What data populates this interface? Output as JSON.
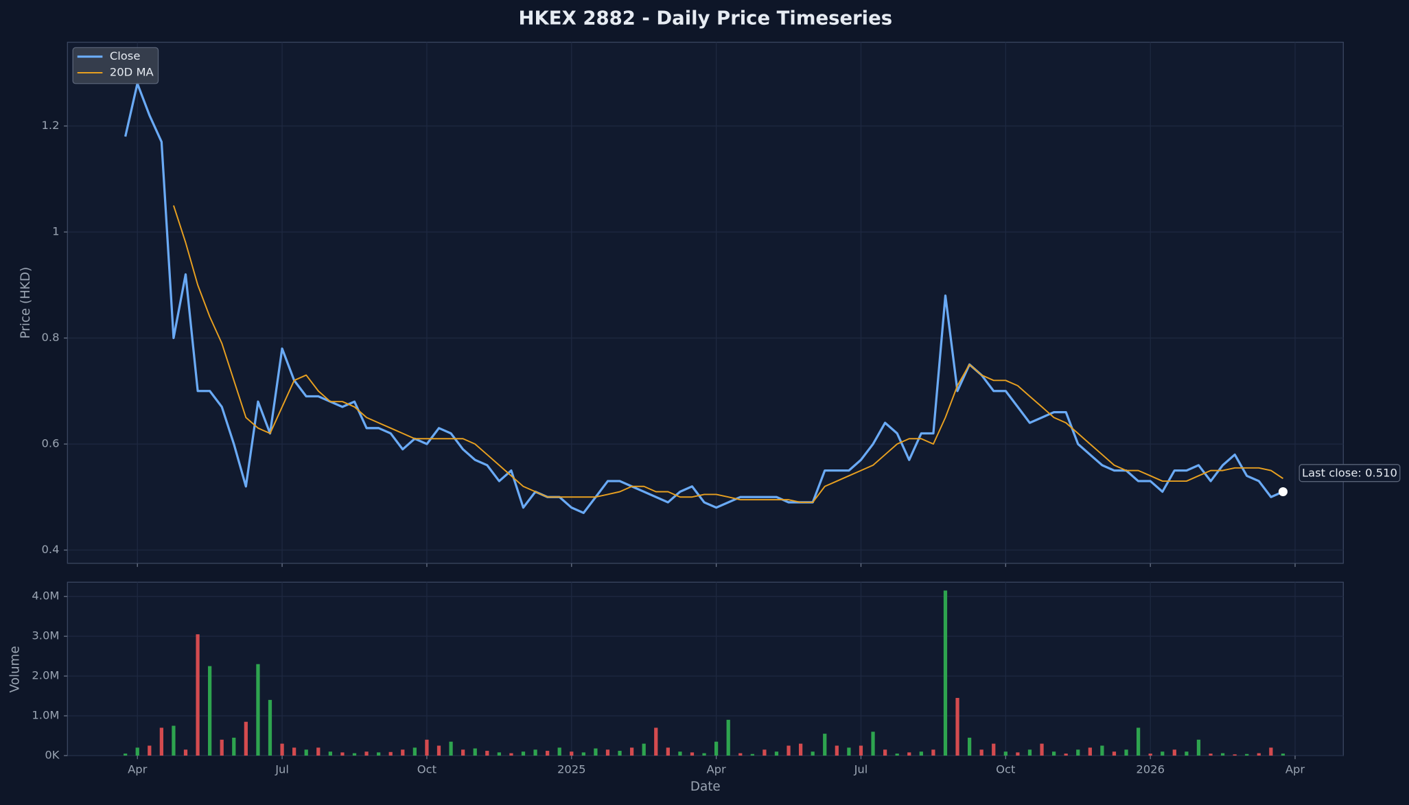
{
  "chart_data": [
    {
      "type": "line",
      "title": "HKEX 2882 - Daily Price Timeseries",
      "ylabel": "Price (HKD)",
      "x": [
        2.75,
        3,
        3.25,
        3.5,
        3.75,
        4,
        4.25,
        4.5,
        4.75,
        5,
        5.25,
        5.5,
        5.75,
        6,
        6.25,
        6.5,
        6.75,
        7,
        7.25,
        7.5,
        7.75,
        8,
        8.25,
        8.5,
        8.75,
        9,
        9.25,
        9.5,
        9.75,
        10,
        10.25,
        10.5,
        10.75,
        11,
        11.25,
        11.5,
        11.75,
        12,
        12.25,
        12.5,
        12.75,
        13,
        13.25,
        13.5,
        13.75,
        14,
        14.25,
        14.5,
        14.75,
        15,
        15.25,
        15.5,
        15.75,
        16,
        16.25,
        16.5,
        16.75,
        17,
        17.25,
        17.5,
        17.75,
        18,
        18.25,
        18.5,
        18.75,
        19,
        19.25,
        19.5,
        19.75,
        20,
        20.25,
        20.5,
        20.75,
        21,
        21.25,
        21.5,
        21.75,
        22,
        22.25,
        22.5,
        22.75,
        23,
        23.25,
        23.5,
        23.75,
        24,
        24.25,
        24.5,
        24.75,
        25,
        25.25,
        25.5,
        25.75,
        26,
        26.25,
        26.5,
        26.75
      ],
      "series": [
        {
          "name": "Close",
          "color": "#6aaaf5",
          "width": 2.5,
          "values": [
            1.18,
            1.28,
            1.22,
            1.17,
            0.8,
            0.92,
            0.7,
            0.7,
            0.67,
            0.6,
            0.52,
            0.68,
            0.62,
            0.78,
            0.72,
            0.69,
            0.69,
            0.68,
            0.67,
            0.68,
            0.63,
            0.63,
            0.62,
            0.59,
            0.61,
            0.6,
            0.63,
            0.62,
            0.59,
            0.57,
            0.56,
            0.53,
            0.55,
            0.48,
            0.51,
            0.5,
            0.5,
            0.48,
            0.47,
            0.5,
            0.53,
            0.53,
            0.52,
            0.51,
            0.5,
            0.49,
            0.51,
            0.52,
            0.49,
            0.48,
            0.49,
            0.5,
            0.5,
            0.5,
            0.5,
            0.49,
            0.49,
            0.49,
            0.55,
            0.55,
            0.55,
            0.57,
            0.6,
            0.64,
            0.62,
            0.57,
            0.62,
            0.62,
            0.88,
            0.7,
            0.75,
            0.73,
            0.7,
            0.7,
            0.67,
            0.64,
            0.65,
            0.66,
            0.66,
            0.6,
            0.58,
            0.56,
            0.55,
            0.55,
            0.53,
            0.53,
            0.51,
            0.55,
            0.55,
            0.56,
            0.53,
            0.56,
            0.58,
            0.54,
            0.53,
            0.5,
            0.51
          ]
        },
        {
          "name": "20D MA",
          "color": "#e8a020",
          "width": 1.5,
          "values": [
            null,
            null,
            null,
            null,
            1.05,
            0.98,
            0.9,
            0.84,
            0.79,
            0.72,
            0.65,
            0.63,
            0.62,
            0.67,
            0.72,
            0.73,
            0.7,
            0.68,
            0.68,
            0.67,
            0.65,
            0.64,
            0.63,
            0.62,
            0.61,
            0.61,
            0.61,
            0.61,
            0.61,
            0.6,
            0.58,
            0.56,
            0.54,
            0.52,
            0.51,
            0.5,
            0.5,
            0.5,
            0.5,
            0.5,
            0.505,
            0.51,
            0.52,
            0.52,
            0.51,
            0.51,
            0.5,
            0.5,
            0.505,
            0.505,
            0.5,
            0.495,
            0.495,
            0.495,
            0.495,
            0.495,
            0.49,
            0.49,
            0.52,
            0.53,
            0.54,
            0.55,
            0.56,
            0.58,
            0.6,
            0.61,
            0.61,
            0.6,
            0.65,
            0.71,
            0.75,
            0.73,
            0.72,
            0.72,
            0.71,
            0.69,
            0.67,
            0.65,
            0.64,
            0.62,
            0.6,
            0.58,
            0.56,
            0.55,
            0.55,
            0.54,
            0.53,
            0.53,
            0.53,
            0.54,
            0.55,
            0.55,
            0.555,
            0.555,
            0.555,
            0.55,
            0.535
          ]
        }
      ],
      "annotation": "Last close: 0.510",
      "xlim": [
        1.55,
        28.0
      ],
      "xticks": [
        3,
        6,
        9,
        12,
        15,
        18,
        21,
        24,
        27
      ],
      "ylim": [
        0.375,
        1.358
      ],
      "yticks": [
        0.4,
        0.6,
        0.8,
        1.0,
        1.2
      ],
      "grid": true,
      "legend": "upper left"
    },
    {
      "type": "bar",
      "ylabel": "Volume",
      "xlabel": "Date",
      "x": [
        2.75,
        3,
        3.25,
        3.5,
        3.75,
        4,
        4.25,
        4.5,
        4.75,
        5,
        5.25,
        5.5,
        5.75,
        6,
        6.25,
        6.5,
        6.75,
        7,
        7.25,
        7.5,
        7.75,
        8,
        8.25,
        8.5,
        8.75,
        9,
        9.25,
        9.5,
        9.75,
        10,
        10.25,
        10.5,
        10.75,
        11,
        11.25,
        11.5,
        11.75,
        12,
        12.25,
        12.5,
        12.75,
        13,
        13.25,
        13.5,
        13.75,
        14,
        14.25,
        14.5,
        14.75,
        15,
        15.25,
        15.5,
        15.75,
        16,
        16.25,
        16.5,
        16.75,
        17,
        17.25,
        17.5,
        17.75,
        18,
        18.25,
        18.5,
        18.75,
        19,
        19.25,
        19.5,
        19.75,
        20,
        20.25,
        20.5,
        20.75,
        21,
        21.25,
        21.5,
        21.75,
        22,
        22.25,
        22.5,
        22.75,
        23,
        23.25,
        23.5,
        23.75,
        24,
        24.25,
        24.5,
        24.75,
        25,
        25.25,
        25.5,
        25.75,
        26,
        26.25,
        26.5,
        26.75
      ],
      "values": [
        50000,
        200000,
        250000,
        700000,
        750000,
        150000,
        3050000,
        2250000,
        400000,
        450000,
        850000,
        2300000,
        1400000,
        300000,
        200000,
        150000,
        200000,
        100000,
        80000,
        60000,
        100000,
        80000,
        90000,
        150000,
        200000,
        400000,
        250000,
        350000,
        150000,
        180000,
        120000,
        80000,
        60000,
        100000,
        150000,
        120000,
        200000,
        100000,
        80000,
        180000,
        150000,
        120000,
        200000,
        300000,
        700000,
        200000,
        100000,
        80000,
        60000,
        350000,
        900000,
        60000,
        40000,
        150000,
        100000,
        250000,
        300000,
        100000,
        550000,
        250000,
        200000,
        250000,
        600000,
        150000,
        50000,
        80000,
        100000,
        150000,
        4150000,
        1450000,
        450000,
        150000,
        300000,
        100000,
        80000,
        150000,
        300000,
        100000,
        50000,
        150000,
        200000,
        250000,
        100000,
        150000,
        700000,
        50000,
        100000,
        150000,
        100000,
        400000,
        50000,
        60000,
        30000,
        40000,
        60000,
        200000,
        50000
      ],
      "colors": [
        "#2ea44f",
        "#2ea44f",
        "#d44b4f",
        "#d44b4f",
        "#2ea44f",
        "#d44b4f",
        "#d44b4f",
        "#2ea44f",
        "#d44b4f",
        "#2ea44f",
        "#d44b4f",
        "#2ea44f",
        "#2ea44f",
        "#d44b4f",
        "#d44b4f",
        "#2ea44f",
        "#d44b4f",
        "#2ea44f",
        "#d44b4f",
        "#2ea44f",
        "#d44b4f",
        "#2ea44f",
        "#d44b4f",
        "#d44b4f",
        "#2ea44f",
        "#d44b4f",
        "#d44b4f",
        "#2ea44f",
        "#d44b4f",
        "#2ea44f",
        "#d44b4f",
        "#2ea44f",
        "#d44b4f",
        "#2ea44f",
        "#2ea44f",
        "#d44b4f",
        "#2ea44f",
        "#d44b4f",
        "#2ea44f",
        "#2ea44f",
        "#d44b4f",
        "#2ea44f",
        "#d44b4f",
        "#2ea44f",
        "#d44b4f",
        "#d44b4f",
        "#2ea44f",
        "#d44b4f",
        "#2ea44f",
        "#2ea44f",
        "#2ea44f",
        "#d44b4f",
        "#2ea44f",
        "#d44b4f",
        "#2ea44f",
        "#d44b4f",
        "#d44b4f",
        "#2ea44f",
        "#2ea44f",
        "#d44b4f",
        "#2ea44f",
        "#d44b4f",
        "#2ea44f",
        "#d44b4f",
        "#2ea44f",
        "#d44b4f",
        "#2ea44f",
        "#d44b4f",
        "#2ea44f",
        "#d44b4f",
        "#2ea44f",
        "#d44b4f",
        "#d44b4f",
        "#2ea44f",
        "#d44b4f",
        "#2ea44f",
        "#d44b4f",
        "#2ea44f",
        "#d44b4f",
        "#2ea44f",
        "#d44b4f",
        "#2ea44f",
        "#d44b4f",
        "#2ea44f",
        "#2ea44f",
        "#d44b4f",
        "#2ea44f",
        "#d44b4f",
        "#2ea44f",
        "#2ea44f",
        "#d44b4f",
        "#2ea44f",
        "#d44b4f",
        "#2ea44f",
        "#d44b4f",
        "#d44b4f",
        "#2ea44f"
      ],
      "xlim": [
        1.55,
        28.0
      ],
      "xticks": [
        {
          "value": 3,
          "label": "Apr"
        },
        {
          "value": 6,
          "label": "Jul"
        },
        {
          "value": 9,
          "label": "Oct"
        },
        {
          "value": 12,
          "label": "2025"
        },
        {
          "value": 15,
          "label": "Apr"
        },
        {
          "value": 18,
          "label": "Jul"
        },
        {
          "value": 21,
          "label": "Oct"
        },
        {
          "value": 24,
          "label": "2026"
        },
        {
          "value": 27,
          "label": "Apr"
        }
      ],
      "ylim": [
        0,
        4360000
      ],
      "yticks": [
        {
          "value": 0,
          "label": "0K"
        },
        {
          "value": 1000000,
          "label": "1.0M"
        },
        {
          "value": 2000000,
          "label": "2.0M"
        },
        {
          "value": 3000000,
          "label": "3.0M"
        },
        {
          "value": 4000000,
          "label": "4.0M"
        }
      ],
      "grid": true
    }
  ]
}
